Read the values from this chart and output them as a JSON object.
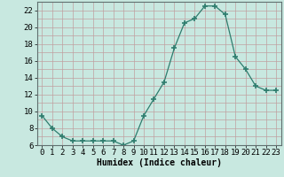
{
  "x": [
    0,
    1,
    2,
    3,
    4,
    5,
    6,
    7,
    8,
    9,
    10,
    11,
    12,
    13,
    14,
    15,
    16,
    17,
    18,
    19,
    20,
    21,
    22,
    23
  ],
  "y": [
    9.5,
    8.0,
    7.0,
    6.5,
    6.5,
    6.5,
    6.5,
    6.5,
    6.0,
    6.5,
    9.5,
    11.5,
    13.5,
    17.5,
    20.5,
    21.0,
    22.5,
    22.5,
    21.5,
    16.5,
    15.0,
    13.0,
    12.5,
    12.5
  ],
  "line_color": "#2e7d6e",
  "marker": "+",
  "marker_size": 4,
  "bg_color": "#c8e8e0",
  "grid_color": "#c0a0a0",
  "xlabel": "Humidex (Indice chaleur)",
  "ylim": [
    6,
    23
  ],
  "xlim": [
    -0.5,
    23.5
  ],
  "yticks": [
    6,
    8,
    10,
    12,
    14,
    16,
    18,
    20,
    22
  ],
  "xticks": [
    0,
    1,
    2,
    3,
    4,
    5,
    6,
    7,
    8,
    9,
    10,
    11,
    12,
    13,
    14,
    15,
    16,
    17,
    18,
    19,
    20,
    21,
    22,
    23
  ],
  "xlabel_fontsize": 7,
  "tick_fontsize": 6.5
}
